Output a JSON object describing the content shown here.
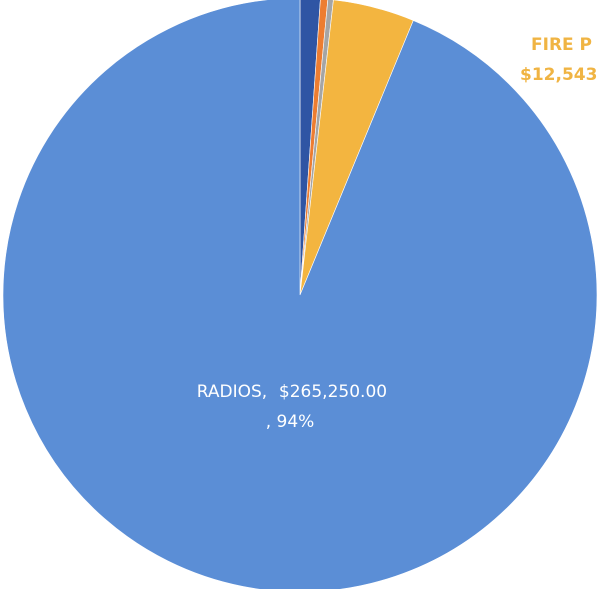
{
  "chart_data": {
    "type": "pie",
    "categories": [
      null,
      null,
      null,
      "FIRE P",
      "RADIOS,"
    ],
    "values": [
      3100,
      1130,
      850,
      12543,
      265250
    ],
    "value_labels": [
      null,
      null,
      null,
      "$12,543",
      "$265,250.00"
    ],
    "percent_labels": [
      null,
      null,
      null,
      null,
      ", 94%"
    ],
    "colors": [
      "#2f55a4",
      "#ed7d31",
      "#a5a5a5",
      "#f3b540",
      "#5b8ed6"
    ]
  }
}
